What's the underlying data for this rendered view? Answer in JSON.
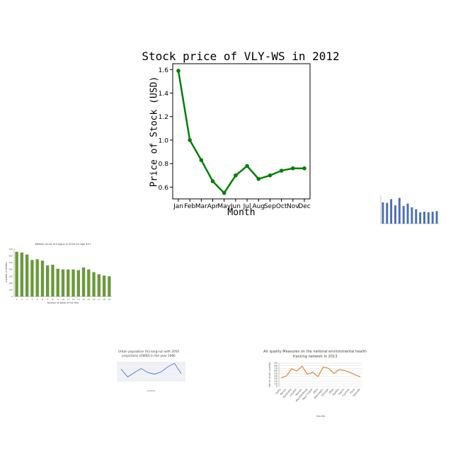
{
  "chart_data": [
    {
      "type": "line",
      "title": "Stock price of VLY-WS in 2012",
      "xlabel": "Month",
      "ylabel": "Price of Stock (USD)",
      "categories": [
        "Jan",
        "Feb",
        "Mar",
        "Apr",
        "May",
        "Jun",
        "Jul",
        "Aug",
        "Sep",
        "Oct",
        "Nov",
        "Dec"
      ],
      "values": [
        1.59,
        1.0,
        0.83,
        0.65,
        0.55,
        0.7,
        0.78,
        0.67,
        0.7,
        0.74,
        0.76,
        0.76
      ],
      "yticks": [
        0.6,
        0.8,
        1.0,
        1.2,
        1.4,
        1.6
      ],
      "ylim": [
        0.5,
        1.65
      ],
      "color": "#008000",
      "grid": false
    },
    {
      "type": "bar",
      "title": "",
      "xlabel": "",
      "ylabel": "",
      "values": [
        3.4,
        3.3,
        3.9,
        2.9,
        4.1,
        2.8,
        3.2,
        2.6,
        2.3,
        1.8,
        1.9,
        1.8,
        1.9,
        2.0
      ],
      "ylim": [
        0,
        4.5
      ],
      "color": "#4a6fb3"
    },
    {
      "type": "bar",
      "title": "Weekly count of fungus in 2020 for age 45+",
      "xlabel": "Number of Week of the Year",
      "ylabel": "number of deaths",
      "categories": [
        "1",
        "2",
        "3",
        "4",
        "5",
        "6",
        "7",
        "8",
        "9",
        "10",
        "11",
        "12",
        "13",
        "14",
        "15",
        "16",
        "17",
        "18",
        "19"
      ],
      "values": [
        660,
        650,
        620,
        540,
        550,
        530,
        460,
        470,
        410,
        400,
        400,
        400,
        390,
        430,
        400,
        360,
        330,
        310,
        300
      ],
      "yticks": [
        0,
        100,
        200,
        300,
        400,
        500,
        600,
        700
      ],
      "ylim": [
        0,
        720
      ],
      "color": "#6a9a3a"
    },
    {
      "type": "line",
      "title": "Urban population (%) long-run with 2050 projections (OWID) in the year 1966",
      "xlabel": "Country",
      "ylabel": "",
      "values": [
        52,
        38,
        46,
        53,
        46,
        43,
        47,
        56,
        62,
        44
      ],
      "ylim": [
        30,
        65
      ],
      "color": "#4a78c8",
      "grid": true
    },
    {
      "type": "line",
      "title": "Air quality Measures on the national environmental health tracking network in 2013",
      "xlabel": "County",
      "ylabel": "Value of air quality",
      "categories": [
        "Delta",
        "Kenny",
        "Kentucky",
        "Loudon",
        "Marion",
        "Mecklenburg",
        "New Castle",
        "Ohio",
        "Okanogan",
        "Orange",
        "Otoe",
        "Pueblo",
        "Sierra",
        "Cochise",
        "Pinal",
        "Pawnee"
      ],
      "values": [
        33,
        40,
        68,
        60,
        78,
        47,
        55,
        38,
        75,
        70,
        50,
        65,
        62,
        55,
        45,
        37
      ],
      "yticks": [
        0,
        10,
        20,
        30,
        40,
        50,
        60,
        70,
        80,
        90
      ],
      "ylim": [
        0,
        90
      ],
      "color": "#e07b24",
      "grid": true
    }
  ]
}
